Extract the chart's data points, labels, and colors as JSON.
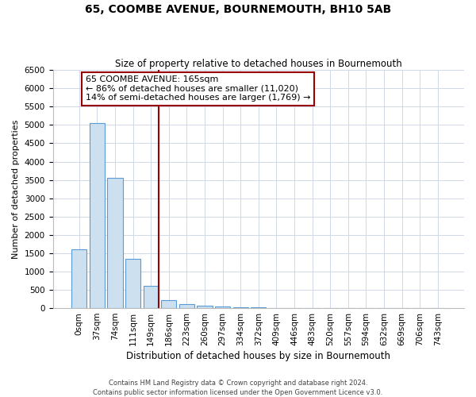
{
  "title": "65, COOMBE AVENUE, BOURNEMOUTH, BH10 5AB",
  "subtitle": "Size of property relative to detached houses in Bournemouth",
  "xlabel": "Distribution of detached houses by size in Bournemouth",
  "ylabel": "Number of detached properties",
  "footnote1": "Contains HM Land Registry data © Crown copyright and database right 2024.",
  "footnote2": "Contains public sector information licensed under the Open Government Licence v3.0.",
  "bar_labels": [
    "0sqm",
    "37sqm",
    "74sqm",
    "111sqm",
    "149sqm",
    "186sqm",
    "223sqm",
    "260sqm",
    "297sqm",
    "334sqm",
    "372sqm",
    "409sqm",
    "446sqm",
    "483sqm",
    "520sqm",
    "557sqm",
    "594sqm",
    "632sqm",
    "669sqm",
    "706sqm",
    "743sqm"
  ],
  "bar_values": [
    1600,
    5050,
    3550,
    1350,
    600,
    220,
    100,
    60,
    35,
    20,
    15,
    10,
    7,
    5,
    4,
    3,
    2,
    2,
    1,
    1,
    0
  ],
  "bar_color": "#cce0f0",
  "bar_edge_color": "#5b9bd5",
  "property_line_color": "#990000",
  "annotation_line1": "65 COOMBE AVENUE: 165sqm",
  "annotation_line2": "← 86% of detached houses are smaller (11,020)",
  "annotation_line3": "14% of semi-detached houses are larger (1,769) →",
  "annotation_box_color": "#990000",
  "ylim": [
    0,
    6500
  ],
  "yticks": [
    0,
    500,
    1000,
    1500,
    2000,
    2500,
    3000,
    3500,
    4000,
    4500,
    5000,
    5500,
    6000,
    6500
  ],
  "background_color": "#ffffff",
  "grid_color": "#d0d8e8",
  "title_fontsize": 10,
  "subtitle_fontsize": 8.5,
  "ylabel_fontsize": 8,
  "xlabel_fontsize": 8.5,
  "tick_fontsize": 7.5,
  "annotation_fontsize": 8,
  "footnote_fontsize": 6
}
